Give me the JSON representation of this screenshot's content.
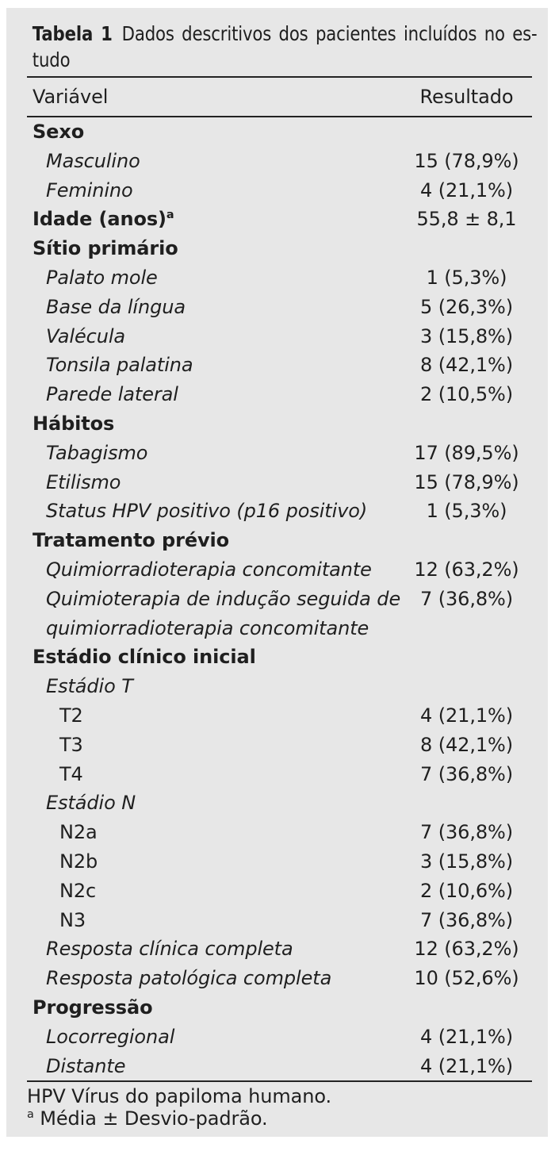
{
  "table": {
    "caption": {
      "label": "Tabela 1",
      "line1": "Dados descritivos dos pacientes incluídos no es-",
      "line2": "tudo"
    },
    "columns": {
      "variable": "Variável",
      "result": "Resultado"
    },
    "rows": [
      {
        "label": "Sexo",
        "level": 0,
        "value": ""
      },
      {
        "label": "Masculino",
        "level": 1,
        "value": "15 (78,9%)"
      },
      {
        "label": "Feminino",
        "level": 1,
        "value": "4 (21,1%)"
      },
      {
        "label": "Idade (anos)",
        "sup": "a",
        "level": 0,
        "value": "55,8 ± 8,1"
      },
      {
        "label": "Sítio primário",
        "level": 0,
        "value": ""
      },
      {
        "label": "Palato mole",
        "level": 1,
        "value": "1 (5,3%)"
      },
      {
        "label": "Base da língua",
        "level": 1,
        "value": "5 (26,3%)"
      },
      {
        "label": "Valécula",
        "level": 1,
        "value": "3 (15,8%)"
      },
      {
        "label": "Tonsila palatina",
        "level": 1,
        "value": "8 (42,1%)"
      },
      {
        "label": "Parede lateral",
        "level": 1,
        "value": "2 (10,5%)"
      },
      {
        "label": "Hábitos",
        "level": 0,
        "value": ""
      },
      {
        "label": "Tabagismo",
        "level": 1,
        "value": "17 (89,5%)"
      },
      {
        "label": "Etilismo",
        "level": 1,
        "value": "15 (78,9%)"
      },
      {
        "label": "Status HPV positivo (p16 positivo)",
        "level": 1,
        "value": "1 (5,3%)"
      },
      {
        "label": "Tratamento prévio",
        "level": 0,
        "value": ""
      },
      {
        "label": "Quimiorradioterapia concomitante",
        "level": 1,
        "value": "12 (63,2%)"
      },
      {
        "label": "Quimioterapia de indução seguida de\nquimiorradioterapia concomitante",
        "level": 1,
        "value": "7 (36,8%)"
      },
      {
        "label": "Estádio clínico inicial",
        "level": 0,
        "value": ""
      },
      {
        "label": "Estádio T",
        "level": 1,
        "value": ""
      },
      {
        "label": "T2",
        "level": 2,
        "value": "4 (21,1%)"
      },
      {
        "label": "T3",
        "level": 2,
        "value": "8 (42,1%)"
      },
      {
        "label": "T4",
        "level": 2,
        "value": "7 (36,8%)"
      },
      {
        "label": "Estádio N",
        "level": 1,
        "value": ""
      },
      {
        "label": "N2a",
        "level": 2,
        "value": "7 (36,8%)"
      },
      {
        "label": "N2b",
        "level": 2,
        "value": "3 (15,8%)"
      },
      {
        "label": "N2c",
        "level": 2,
        "value": "2 (10,6%)"
      },
      {
        "label": "N3",
        "level": 2,
        "value": "7 (36,8%)"
      },
      {
        "label": "Resposta clínica completa",
        "level": 1,
        "value": "12 (63,2%)"
      },
      {
        "label": "Resposta patológica completa",
        "level": 1,
        "value": "10 (52,6%)"
      },
      {
        "label": "Progressão",
        "level": 0,
        "value": ""
      },
      {
        "label": "Locorregional",
        "level": 1,
        "value": "4 (21,1%)"
      },
      {
        "label": "Distante",
        "level": 1,
        "value": "4 (21,1%)"
      }
    ],
    "footnotes": [
      {
        "sup": "",
        "text": "HPV Vírus do papiloma humano."
      },
      {
        "sup": "a",
        "text": "Média ± Desvio-padrão."
      }
    ]
  },
  "colors": {
    "panel_bg": "#e7e7e7",
    "text": "#1f1f1f",
    "rule": "#232323"
  }
}
